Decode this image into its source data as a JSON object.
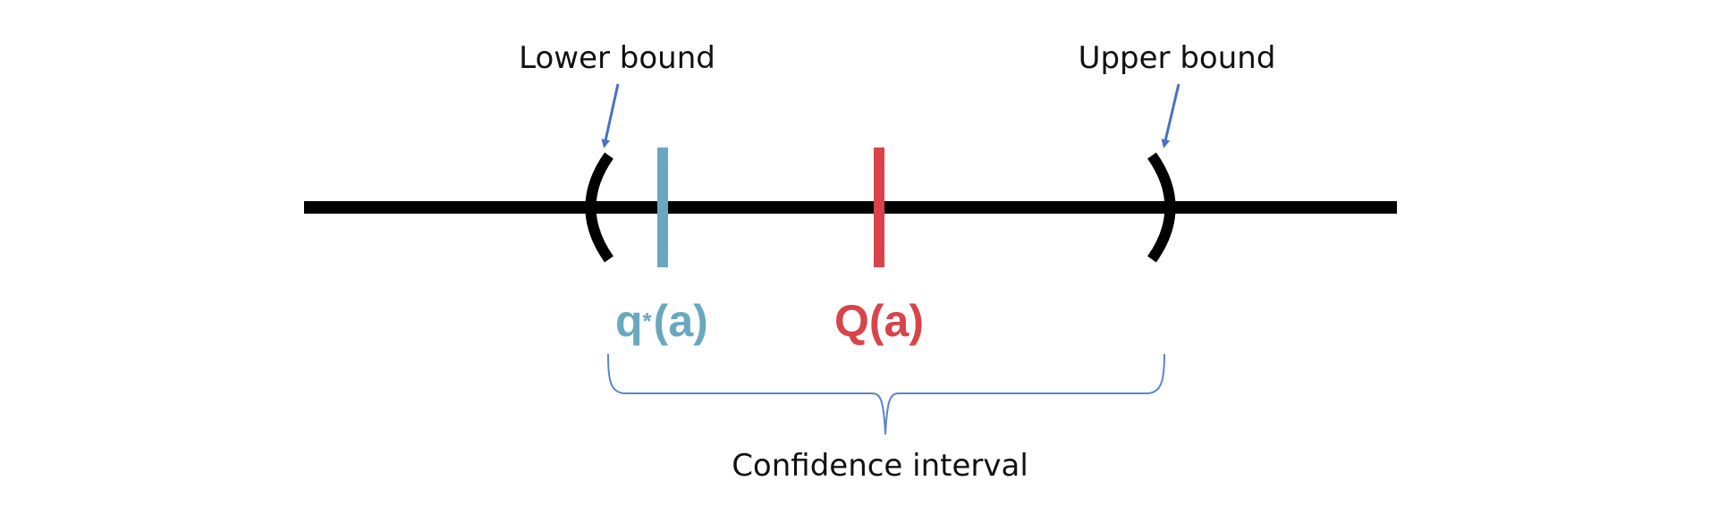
{
  "labels": {
    "lower_bound": "Lower bound",
    "upper_bound": "Upper bound",
    "confidence_interval": "Confidence interval",
    "true_value_symbol": "q",
    "true_value_star": "*",
    "true_value_arg": "(a)",
    "estimate": "Q(a)"
  },
  "colors": {
    "axis": "#000000",
    "true_value": "#6aa8bf",
    "estimate": "#d9434a",
    "arrow": "#4a72c0",
    "brace": "#5b86c8",
    "text": "#111111"
  }
}
